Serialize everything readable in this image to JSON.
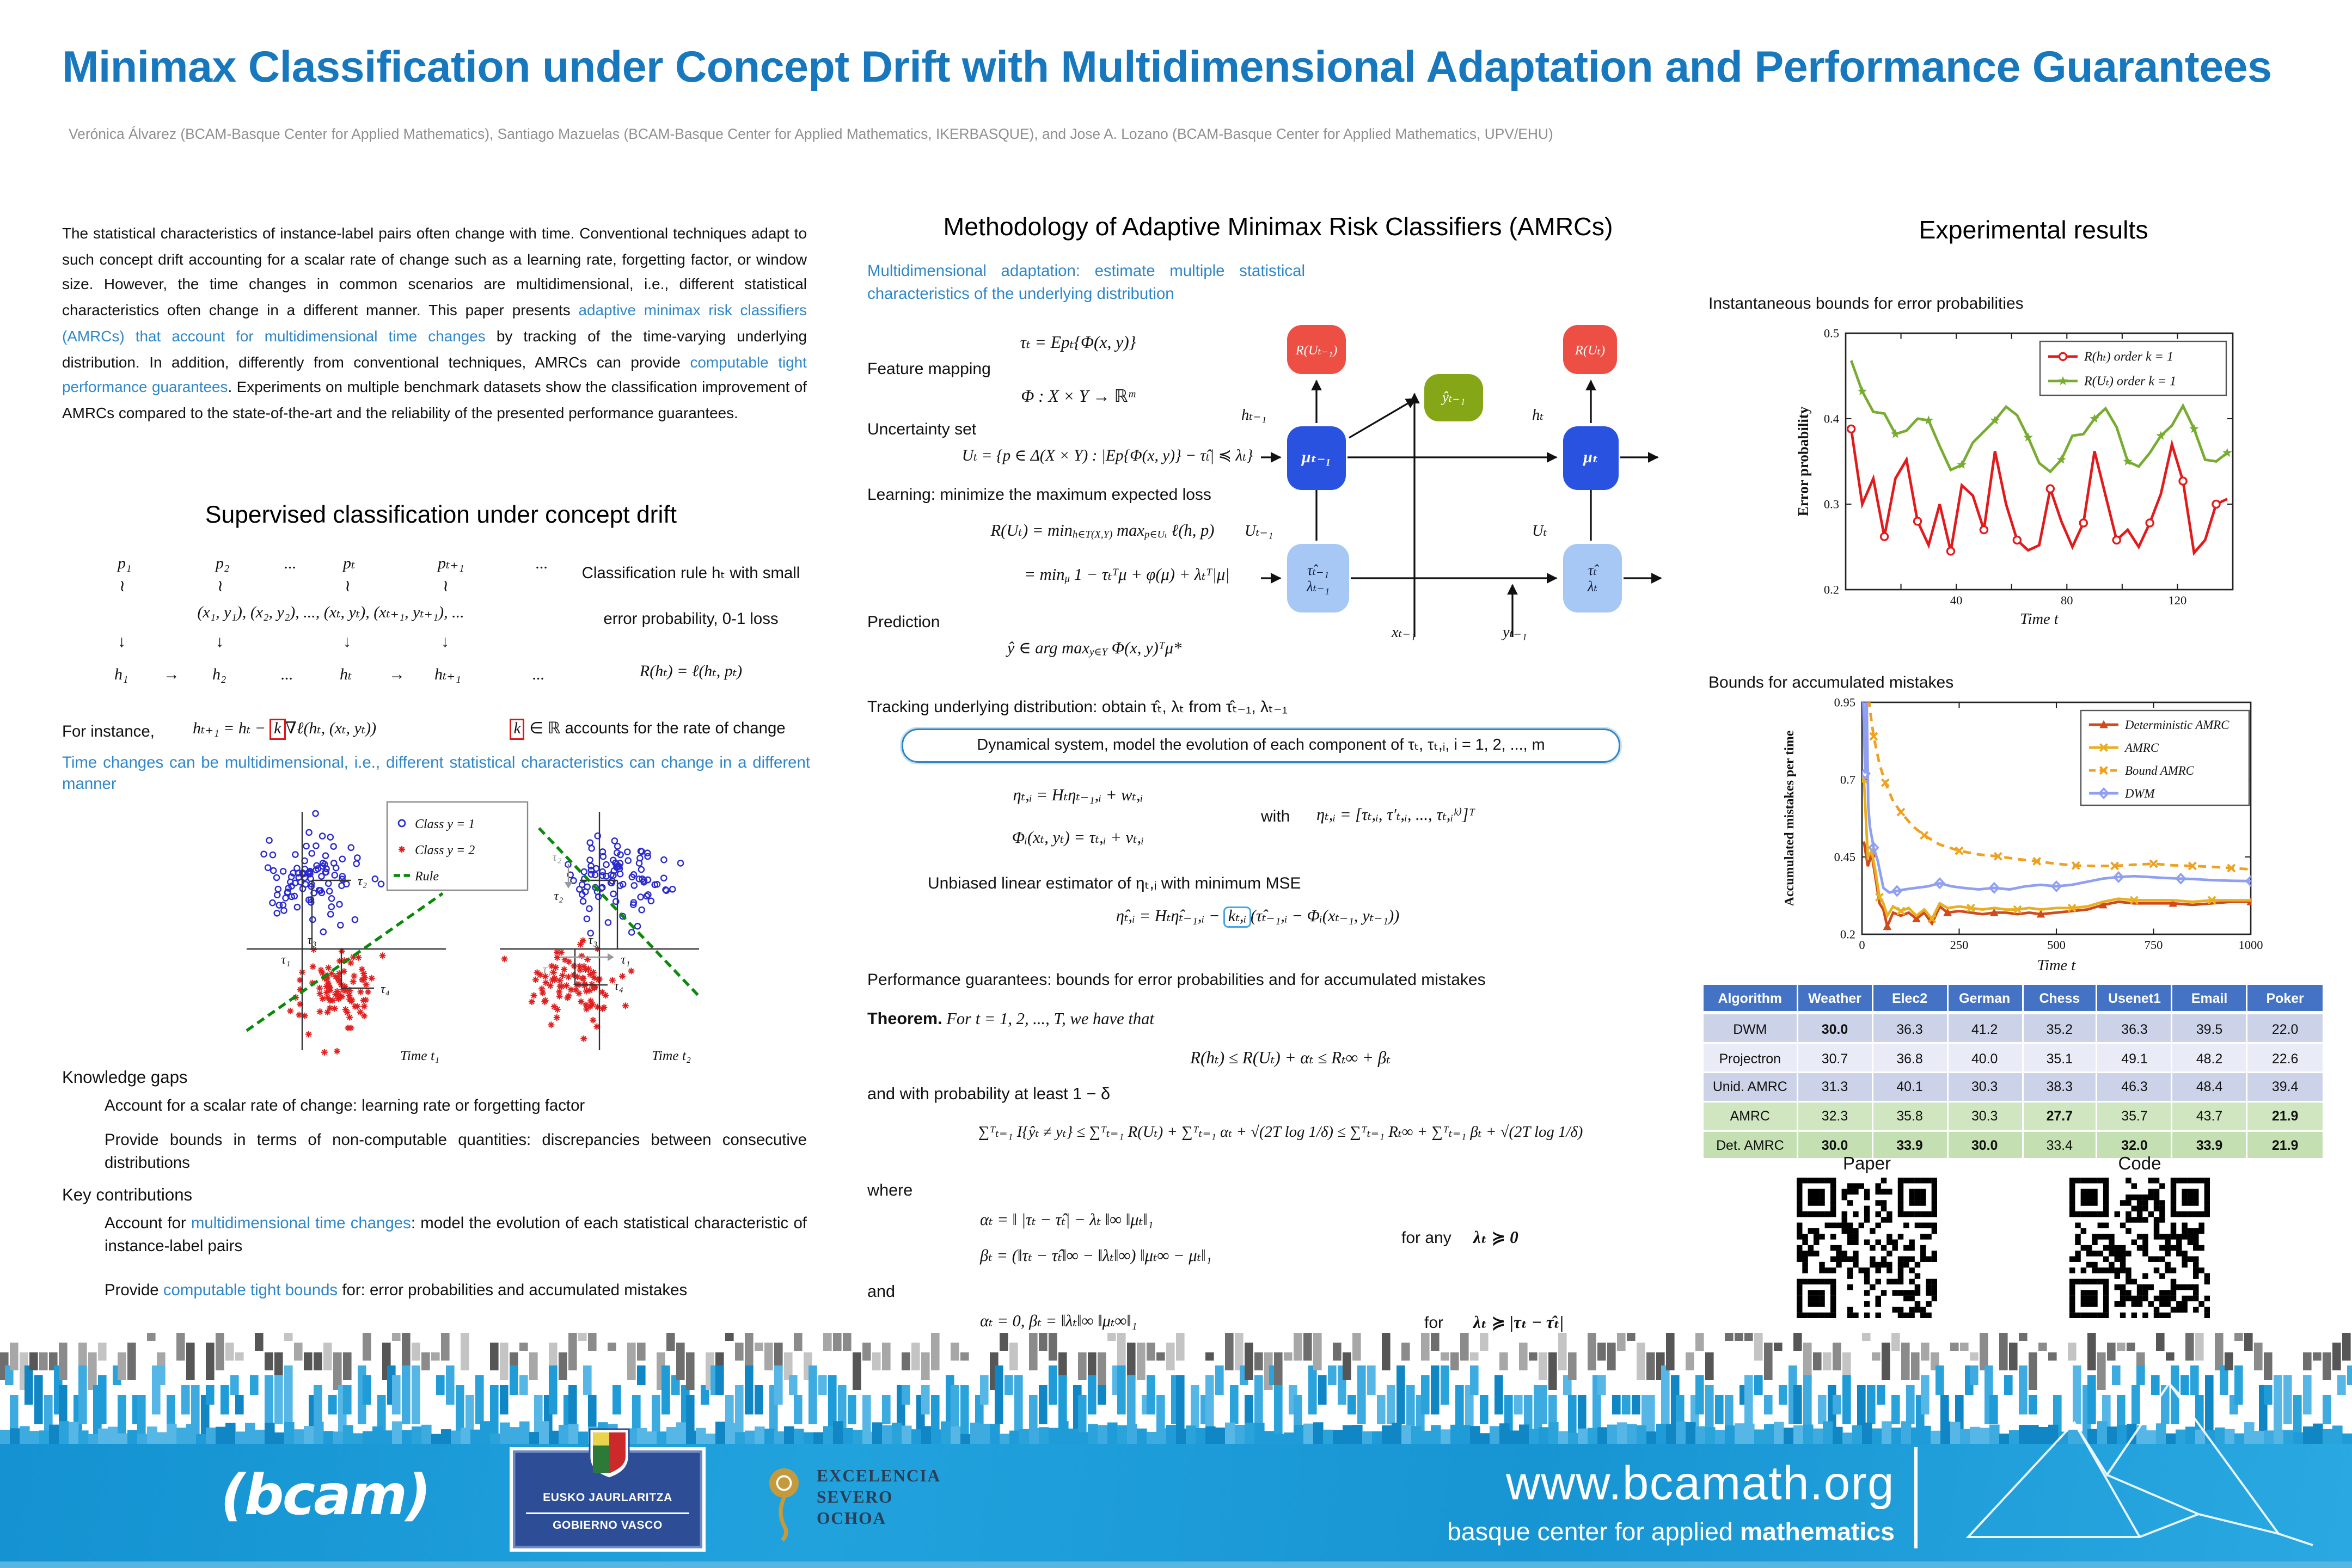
{
  "colors": {
    "title_blue": "#1878be",
    "link_blue": "#2e86c9",
    "footer_blue": "#189ad6",
    "table_header_blue": "#4472c4",
    "row_lavender": "#ccd3e8",
    "row_lavender_light": "#e9ebf6",
    "row_green": "#c9e3ba",
    "diagram_box_red": "#ee4f44",
    "diagram_box_blue": "#2a52e0",
    "diagram_box_lightblue": "#a7c8f5",
    "diagram_box_green": "#84a617",
    "series_red": "#e31a1c",
    "series_green": "#77ac30",
    "series_det_amrc": "#d2491c",
    "series_amrc": "#e8b020",
    "series_bound_amrc": "#efa01e",
    "series_dwm": "#8f9ff2"
  },
  "header": {
    "title": "Minimax Classification under Concept Drift with Multidimensional Adaptation and Performance Guarantees",
    "authors": "Verónica Álvarez (BCAM-Basque Center for Applied Mathematics), Santiago Mazuelas (BCAM-Basque Center for Applied Mathematics, IKERBASQUE), and Jose A. Lozano (BCAM-Basque Center for Applied Mathematics, UPV/EHU)"
  },
  "abstract": {
    "s1": "The statistical characteristics of instance-label pairs often change with time. Conventional techniques adapt to such concept drift accounting for a scalar rate of change such as a learning rate, forgetting factor, or window size. However, the time changes in common scenarios are multidimensional, i.e., different statistical characteristics often change in a different manner. This paper presents ",
    "s2": "adaptive minimax risk classifiers (AMRCs) that account for multidimensional time changes",
    "s3": " by tracking of the time-varying underlying distribution. In addition, differently from conventional techniques, AMRCs can provide ",
    "s4": "computable tight performance guarantees",
    "s5": ". Experiments on multiple benchmark datasets show the classification improvement of AMRCs compared to the state-of-the-art and the reliability of the presented performance guarantees."
  },
  "left": {
    "section_title": "Supervised classification under concept drift",
    "seq": {
      "p1": "p₁",
      "p2": "p₂",
      "dots": "...",
      "pt": "pₜ",
      "pt1": "pₜ₊₁",
      "tilde": "≀",
      "pairs": "(x₁, y₁), (x₂, y₂), ..., (xₜ, yₜ), (xₜ₊₁, yₜ₊₁), ...",
      "down": "↓",
      "h1": "h₁",
      "arrow": "→",
      "h2": "h₂",
      "ht": "hₜ",
      "ht1": "hₜ₊₁"
    },
    "rule_note1": "Classification rule hₜ with small",
    "rule_note2": "error probability, 0-1 loss",
    "risk_eq": "R(hₜ) = ℓ(hₜ, pₜ)",
    "for_instance": "For instance,",
    "update_pre": "hₜ₊₁ = hₜ − ",
    "update_k": "k",
    "update_post": "∇ℓ(hₜ, (xₜ, yₜ))",
    "rate_k": "k",
    "rate_note": " ∈ ℝ accounts for the rate of change",
    "multidim_note": "Time changes can be multidimensional, i.e., different statistical characteristics can change in a different manner",
    "figure": {
      "legend1": "Class y = 1",
      "legend2": "Class y = 2",
      "legend3": "Rule",
      "tau1": "τ₁",
      "tau2": "τ₂",
      "tau3": "τ₃",
      "tau4": "τ₄",
      "caption1": "Time t₁",
      "caption2": "Time t₂"
    },
    "gaps_title": "Knowledge gaps",
    "gap1": "Account for a scalar rate of change: learning rate or forgetting factor",
    "gap2": "Provide bounds in terms of non-computable quantities: discrepancies between consecutive distributions",
    "contrib_title": "Key contributions",
    "contrib1_a": "Account for ",
    "contrib1_b": "multidimensional time changes",
    "contrib1_c": ": model the evolution of each statistical characteristic of instance-label pairs",
    "contrib2_a": "Provide ",
    "contrib2_b": "computable tight bounds",
    "contrib2_c": " for: error probabilities and accumulated mistakes"
  },
  "middle": {
    "title": "Methodology of Adaptive Minimax Risk Classifiers (AMRCs)",
    "intro": "Multidimensional adaptation: estimate multiple statistical characteristics of the underlying distribution",
    "tau_eq": "τₜ = Epₜ{Φ(x, y)}",
    "feature_label": "Feature mapping",
    "phi_eq": "Φ : X × Y → ℝᵐ",
    "unc_label": "Uncertainty set",
    "uset_eq": "Uₜ = {p ∈ Δ(X × Y) : |Ep{Φ(x, y)} − τ̂ₜ| ≼ λₜ}",
    "learn_label": "Learning: minimize the maximum expected loss",
    "r1_pre": "R(Uₜ) = min",
    "r1_sub1": "h∈T(X,Y)",
    "r1_mid": " max",
    "r1_sub2": "p∈Uₜ",
    "r1_post": " ℓ(h, p)",
    "r2_pre": "= min",
    "r2_sub": "μ",
    "r2_post": " 1 − τₜᵀμ + φ(μ) + λₜᵀ|μ|",
    "pred_label": "Prediction",
    "pred_pre": "ŷ ∈ arg max",
    "pred_sub": "y∈Y",
    "pred_post": " Φ(x, y)ᵀμ*",
    "tracking": "Tracking underlying distribution: obtain τ̂ₜ, λₜ from τ̂ₜ₋₁, λₜ₋₁",
    "dyn_box": "Dynamical system, model the evolution of each component of τₜ, τₜ,ᵢ, i = 1, 2, ..., m",
    "eta1": "ηₜ,ᵢ = Hₜηₜ₋₁,ᵢ + wₜ,ᵢ",
    "eta2": "Φᵢ(xₜ, yₜ) = τₜ,ᵢ + vₜ,ᵢ",
    "with_label": "with",
    "eta_vec": "ηₜ,ᵢ = [τₜ,ᵢ, τ′ₜ,ᵢ, ..., τₜ,ᵢᵏ⁾]ᵀ",
    "est_label": "Unbiased linear estimator of ηₜ,ᵢ with minimum MSE",
    "est_pre": "η̂ₜ,ᵢ = Hₜη̂ₜ₋₁,ᵢ − ",
    "est_k": "kₜ,ᵢ",
    "est_post": "(τ̂ₜ₋₁,ᵢ − Φᵢ(xₜ₋₁, yₜ₋₁))",
    "perf_label": "Performance guarantees: bounds for error probabilities and for accumulated mistakes",
    "thm_word": "Theorem.",
    "thm_rest": "  For t = 1, 2, ..., T, we have that",
    "thm_eq": "R(hₜ) ≤ R(Uₜ) + αₜ ≤ Rₜ∞ + βₜ",
    "prob_line": "and with probability at least 1 − δ",
    "sum_eq": "∑ᵀₜ₌₁ I{ŷₜ ≠ yₜ} ≤ ∑ᵀₜ₌₁ R(Uₜ) + ∑ᵀₜ₌₁ αₜ + √(2T log 1/δ) ≤ ∑ᵀₜ₌₁ Rₜ∞ + ∑ᵀₜ₌₁ βₜ + √(2T log 1/δ)",
    "where_label": "where",
    "alpha_eq": "αₜ = ‖ |τₜ − τ̂ₜ| − λₜ ‖∞ ‖μₜ‖₁",
    "beta_eq": "βₜ = (‖τₜ − τ̂ₜ‖∞ − ‖λₜ‖∞) ‖μₜ∞ − μₜ‖₁",
    "forany_label": "for any",
    "forany_cond": "λₜ ≽ 0",
    "and_label": "and",
    "alpha0_eq": "αₜ = 0, βₜ = ‖λₜ‖∞ ‖μₜ∞‖₁",
    "for_label": "for",
    "for_cond": "λₜ ≽ |τₜ − τ̂ₜ|"
  },
  "diagram": {
    "r_prev": "R(Uₜ₋₁)",
    "r_cur": "R(Uₜ)",
    "yhat": "ŷₜ₋₁",
    "mu_prev": "μₜ₋₁",
    "mu_cur": "μₜ",
    "tau_prev": "τ̂ₜ₋₁",
    "lam_prev": "λₜ₋₁",
    "tau_cur": "τ̂ₜ",
    "lam_cur": "λₜ",
    "h_prev": "hₜ₋₁",
    "h_cur": "hₜ",
    "u_prev": "Uₜ₋₁",
    "u_cur": "Uₜ",
    "x_prev": "xₜ₋₁",
    "y_prev": "yₜ₋₁"
  },
  "right": {
    "title": "Experimental results",
    "cap1": "Instantaneous bounds for error probabilities",
    "cap2": "Bounds for accumulated mistakes",
    "paper_label": "Paper",
    "code_label": "Code"
  },
  "chart_data": [
    {
      "type": "line",
      "title": "Instantaneous bounds for error probabilities",
      "xlabel": "Time t",
      "ylabel": "Error probability",
      "xlim": [
        0,
        140
      ],
      "ylim": [
        0.2,
        0.5
      ],
      "xticks": [
        40,
        80,
        120
      ],
      "xminor": [
        20,
        60,
        100,
        140
      ],
      "yticks": [
        0.2,
        0.3,
        0.4,
        0.5
      ],
      "grid": false,
      "legend_position": "top-right",
      "series": [
        {
          "name": "R(hₜ) order k = 1",
          "color": "#e31a1c",
          "marker": "circle",
          "dash": "",
          "x": [
            2,
            6,
            10,
            14,
            18,
            22,
            26,
            30,
            34,
            38,
            42,
            46,
            50,
            54,
            58,
            62,
            66,
            70,
            74,
            78,
            82,
            86,
            90,
            94,
            98,
            102,
            106,
            110,
            114,
            118,
            122,
            126,
            130,
            134,
            138
          ],
          "y": [
            0.388,
            0.3,
            0.33,
            0.262,
            0.33,
            0.352,
            0.28,
            0.252,
            0.3,
            0.245,
            0.322,
            0.31,
            0.27,
            0.362,
            0.3,
            0.258,
            0.246,
            0.252,
            0.318,
            0.28,
            0.25,
            0.278,
            0.362,
            0.31,
            0.258,
            0.27,
            0.25,
            0.278,
            0.312,
            0.37,
            0.327,
            0.243,
            0.258,
            0.3,
            0.306
          ]
        },
        {
          "name": "R(Uₜ) order k = 1",
          "color": "#77ac30",
          "marker": "star",
          "dash": "",
          "x": [
            2,
            6,
            10,
            14,
            18,
            22,
            26,
            30,
            34,
            38,
            42,
            46,
            50,
            54,
            58,
            62,
            66,
            70,
            74,
            78,
            82,
            86,
            90,
            94,
            98,
            102,
            106,
            110,
            114,
            118,
            122,
            126,
            130,
            134,
            138
          ],
          "y": [
            0.468,
            0.432,
            0.408,
            0.406,
            0.382,
            0.386,
            0.4,
            0.398,
            0.368,
            0.34,
            0.346,
            0.372,
            0.385,
            0.398,
            0.414,
            0.404,
            0.378,
            0.348,
            0.338,
            0.352,
            0.38,
            0.382,
            0.4,
            0.412,
            0.39,
            0.35,
            0.344,
            0.36,
            0.38,
            0.392,
            0.415,
            0.388,
            0.352,
            0.35,
            0.36
          ]
        }
      ]
    },
    {
      "type": "line",
      "title": "Bounds for accumulated mistakes",
      "xlabel": "Time t",
      "ylabel": "Accumulated mistakes per time",
      "xlim": [
        0,
        1000
      ],
      "ylim": [
        0.2,
        0.95
      ],
      "xticks": [
        0,
        250,
        500,
        750,
        1000
      ],
      "xminor": [],
      "yticks": [
        0.2,
        0.45,
        0.7,
        0.95
      ],
      "grid": false,
      "legend_position": "top-right",
      "series": [
        {
          "name": "Deterministic AMRC",
          "color": "#d2491c",
          "marker": "triangle",
          "dash": "",
          "x": [
            5,
            15,
            25,
            35,
            45,
            55,
            65,
            80,
            100,
            120,
            140,
            160,
            180,
            200,
            220,
            250,
            280,
            310,
            340,
            370,
            400,
            430,
            460,
            500,
            540,
            580,
            620,
            660,
            700,
            750,
            800,
            850,
            900,
            950,
            1000
          ],
          "y": [
            0.5,
            0.42,
            0.46,
            0.38,
            0.3,
            0.28,
            0.225,
            0.27,
            0.26,
            0.27,
            0.25,
            0.27,
            0.235,
            0.29,
            0.27,
            0.275,
            0.27,
            0.265,
            0.27,
            0.27,
            0.265,
            0.27,
            0.265,
            0.27,
            0.275,
            0.28,
            0.295,
            0.305,
            0.3,
            0.3,
            0.3,
            0.295,
            0.3,
            0.305,
            0.305
          ]
        },
        {
          "name": "AMRC",
          "color": "#e8b020",
          "marker": "x",
          "dash": "",
          "x": [
            5,
            15,
            25,
            35,
            45,
            55,
            65,
            80,
            100,
            120,
            140,
            160,
            180,
            200,
            220,
            250,
            280,
            310,
            340,
            370,
            400,
            430,
            460,
            500,
            540,
            580,
            620,
            660,
            700,
            750,
            800,
            850,
            900,
            950,
            1000
          ],
          "y": [
            0.7,
            0.45,
            0.47,
            0.4,
            0.32,
            0.3,
            0.26,
            0.29,
            0.275,
            0.285,
            0.26,
            0.28,
            0.25,
            0.3,
            0.285,
            0.29,
            0.285,
            0.28,
            0.285,
            0.28,
            0.28,
            0.285,
            0.28,
            0.285,
            0.285,
            0.29,
            0.305,
            0.315,
            0.31,
            0.31,
            0.31,
            0.305,
            0.31,
            0.31,
            0.31
          ]
        },
        {
          "name": "Bound AMRC",
          "color": "#efa01e",
          "marker": "x",
          "dash": "5 3.5",
          "x": [
            12,
            20,
            30,
            45,
            60,
            80,
            100,
            130,
            160,
            200,
            250,
            300,
            350,
            400,
            450,
            500,
            550,
            600,
            650,
            700,
            750,
            800,
            850,
            900,
            950,
            1000
          ],
          "y": [
            1.05,
            0.93,
            0.84,
            0.75,
            0.69,
            0.63,
            0.595,
            0.55,
            0.52,
            0.49,
            0.47,
            0.458,
            0.452,
            0.443,
            0.436,
            0.428,
            0.422,
            0.421,
            0.421,
            0.425,
            0.428,
            0.423,
            0.421,
            0.418,
            0.414,
            0.41
          ]
        },
        {
          "name": "DWM",
          "color": "#8f9ff2",
          "marker": "diamond",
          "dash": "",
          "x": [
            3,
            8,
            12,
            16,
            20,
            30,
            40,
            55,
            70,
            90,
            110,
            140,
            170,
            200,
            230,
            260,
            300,
            340,
            380,
            420,
            460,
            500,
            540,
            580,
            620,
            660,
            700,
            740,
            780,
            820,
            860,
            900,
            950,
            1000
          ],
          "y": [
            0.97,
            0.72,
            0.96,
            0.62,
            0.55,
            0.48,
            0.44,
            0.35,
            0.335,
            0.34,
            0.345,
            0.35,
            0.355,
            0.365,
            0.355,
            0.35,
            0.345,
            0.35,
            0.345,
            0.355,
            0.36,
            0.355,
            0.36,
            0.37,
            0.38,
            0.385,
            0.388,
            0.385,
            0.382,
            0.38,
            0.378,
            0.375,
            0.373,
            0.372
          ]
        }
      ]
    }
  ],
  "results_table": {
    "columns": [
      "Algorithm",
      "Weather",
      "Elec2",
      "German",
      "Chess",
      "Usenet1",
      "Email",
      "Poker"
    ],
    "rows": [
      {
        "name": "DWM",
        "values": [
          "30.0",
          "36.3",
          "41.2",
          "35.2",
          "36.3",
          "39.5",
          "22.0"
        ],
        "bold": [
          0
        ],
        "bg": "#ccd3e8"
      },
      {
        "name": "Projectron",
        "values": [
          "30.7",
          "36.8",
          "40.0",
          "35.1",
          "49.1",
          "48.2",
          "22.6"
        ],
        "bold": [],
        "bg": "#e9ebf6"
      },
      {
        "name": "Unid. AMRC",
        "values": [
          "31.3",
          "40.1",
          "30.3",
          "38.3",
          "46.3",
          "48.4",
          "39.4"
        ],
        "bold": [],
        "bg": "#ccd3e8"
      },
      {
        "name": "AMRC",
        "values": [
          "32.3",
          "35.8",
          "30.3",
          "27.7",
          "35.7",
          "43.7",
          "21.9"
        ],
        "bold": [
          3,
          6
        ],
        "bg": "#cfe6c0"
      },
      {
        "name": "Det. AMRC",
        "values": [
          "30.0",
          "33.9",
          "30.0",
          "33.4",
          "32.0",
          "33.9",
          "21.9"
        ],
        "bold": [
          0,
          1,
          2,
          4,
          5,
          6
        ],
        "bg": "#c4dfb2"
      }
    ]
  },
  "footer": {
    "url": "www.bcamath.org",
    "tagline_a": "basque center for applied ",
    "tagline_b": "mathematics",
    "bcam": "(bcam)",
    "gov_line1": "EUSKO JAURLARITZA",
    "gov_line2": "GOBIERNO VASCO",
    "seo_line1": "EXCELENCIA",
    "seo_line2": "SEVERO",
    "seo_line3": "OCHOA"
  }
}
